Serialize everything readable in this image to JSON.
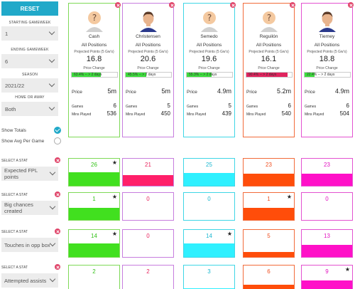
{
  "controls": {
    "reset_label": "RESET",
    "starting_gameweek_label": "STARTING GAMEWEEK",
    "starting_gameweek_value": "1",
    "ending_gameweek_label": "ENDING GAMEWEEK",
    "ending_gameweek_value": "6",
    "season_label": "SEASON",
    "season_value": "2021/22",
    "home_away_label": "HOME OR AWAY",
    "home_away_value": "Both",
    "show_totals_label": "Show Totals",
    "show_totals_checked": true,
    "show_avg_label": "Show Avg Per Game",
    "show_avg_checked": false
  },
  "card_labels": {
    "projected": "Projected Points (5 Gw's)",
    "price_change": "Price Change",
    "price": "Price",
    "games": "Games",
    "mins": "Mins Played"
  },
  "players": [
    {
      "name": "Cash",
      "positions": "All Positions",
      "projected": "16.8",
      "change_text": "63.4% -- > 2 days",
      "change_pct": 63.4,
      "change_color": "#3ddc3d",
      "price": "5m",
      "games": "6",
      "mins": "536",
      "color": "#7ed957",
      "avatar": "unknown"
    },
    {
      "name": "Christensen",
      "positions": "All Positions",
      "projected": "20.6",
      "change_text": "45.5% -- > 2 days",
      "change_pct": 45.5,
      "change_color": "#3ddc3d",
      "price": "5m",
      "games": "5",
      "mins": "450",
      "color": "#c77dde",
      "avatar": "player"
    },
    {
      "name": "Semedo",
      "positions": "All Positions",
      "projected": "19.6",
      "change_text": "55.3% -- > 2 days",
      "change_pct": 55.3,
      "change_color": "#3ddc3d",
      "price": "4.9m",
      "games": "5",
      "mins": "439",
      "color": "#3fd6e6",
      "avatar": "unknown"
    },
    {
      "name": "Reguilón",
      "positions": "All Positions",
      "projected": "16.1",
      "change_text": "90.4% -- > 2 days",
      "change_pct": 90.4,
      "change_color": "#e0245e",
      "price": "5.2m",
      "games": "6",
      "mins": "540",
      "color": "#f26b3a",
      "avatar": "unknown"
    },
    {
      "name": "Tierney",
      "positions": "All Positions",
      "projected": "18.8",
      "change_text": "22.4% -- > 2 days",
      "change_pct": 22.4,
      "change_color": "#3ddc3d",
      "price": "4.9m",
      "games": "6",
      "mins": "504",
      "color": "#e352d0",
      "avatar": "player"
    }
  ],
  "stat_select_label": "SELECT A STAT",
  "stats": [
    {
      "name": "Expected FPL points",
      "values": [
        "26",
        "21",
        "25",
        "23",
        "23"
      ],
      "fills": [
        0.5,
        0.4,
        0.48,
        0.44,
        0.44
      ],
      "best": [
        true,
        false,
        false,
        false,
        false
      ]
    },
    {
      "name": "Big chances created",
      "values": [
        "1",
        "0",
        "0",
        "1",
        "0"
      ],
      "fills": [
        0.45,
        0,
        0,
        0.45,
        0
      ],
      "best": [
        true,
        false,
        false,
        true,
        false
      ]
    },
    {
      "name": "Touches in opp box",
      "values": [
        "14",
        "0",
        "14",
        "5",
        "13"
      ],
      "fills": [
        0.5,
        0,
        0.5,
        0.18,
        0.46
      ],
      "best": [
        true,
        false,
        true,
        false,
        false
      ]
    },
    {
      "name": "Attempted assists",
      "values": [
        "2",
        "2",
        "3",
        "6",
        "9"
      ],
      "fills": [
        0.1,
        0.1,
        0.15,
        0.3,
        0.45
      ],
      "best": [
        false,
        false,
        false,
        false,
        true
      ]
    }
  ],
  "colors": {
    "accent": "#21a9c9",
    "bar_colors": [
      "#41e01f",
      "#ff1f6a",
      "#2ff0ff",
      "#ff4d0a",
      "#ff10c8"
    ],
    "text_colors": [
      "#35c21a",
      "#e8245e",
      "#1ab7d0",
      "#f04e1f",
      "#e212c0"
    ]
  }
}
